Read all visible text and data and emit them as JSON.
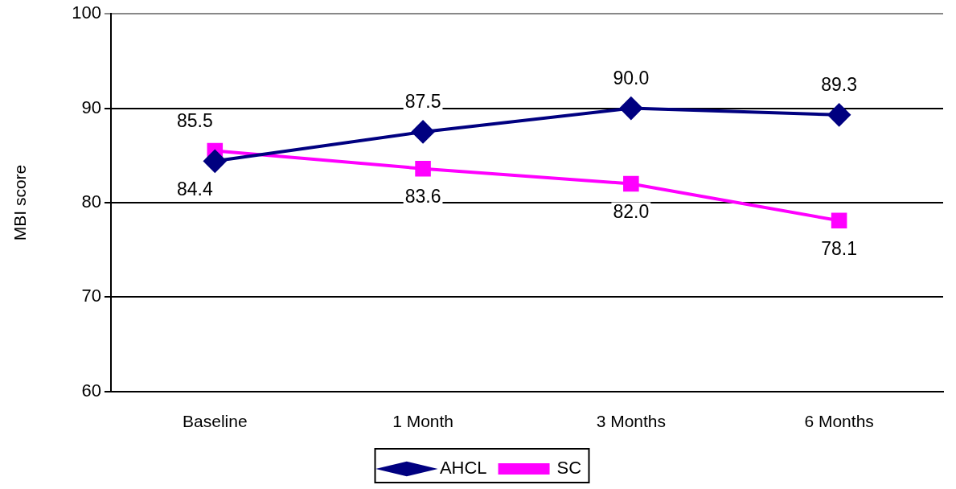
{
  "chart_data": {
    "type": "line",
    "ylabel": "MBI score",
    "categories": [
      "Baseline",
      "1 Month",
      "3 Months",
      "6 Months"
    ],
    "series": [
      {
        "name": "AHCL",
        "color": "#000080",
        "marker": "diamond",
        "values": [
          84.4,
          87.5,
          90.0,
          89.3
        ],
        "value_labels": [
          "84.4",
          "87.5",
          "90.0",
          "89.3"
        ]
      },
      {
        "name": "SC",
        "color": "#ff00ff",
        "marker": "square",
        "values": [
          85.5,
          83.6,
          82.0,
          78.1
        ],
        "value_labels": [
          "85.5",
          "83.6",
          "82.0",
          "78.1"
        ]
      }
    ],
    "ylim": [
      60,
      100
    ],
    "yticks": [
      60,
      70,
      80,
      90,
      100
    ],
    "grid": "y",
    "legend": "bottom"
  }
}
